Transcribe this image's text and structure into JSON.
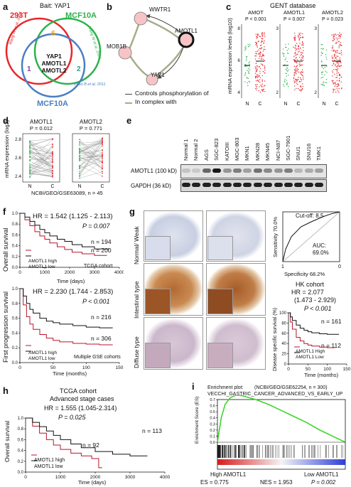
{
  "panels": {
    "a": {
      "letter": "a",
      "bait": "Bait: YAP1",
      "labels": {
        "hek": "293T",
        "mcf10a_top": "MCF10A",
        "mcf10a_bottom": "MCF10A"
      },
      "refs": {
        "wang_left": "Wang W et al, 2014",
        "wang_right": "Wang W et al, 2014",
        "zhao": "Zhao B et al, 2011"
      },
      "counts": {
        "top": "6",
        "left": "1",
        "right": "2"
      },
      "center": [
        "YAP1",
        "AMOTL1",
        "AMOTL2"
      ],
      "colors": {
        "hek": "#e8262b",
        "mcf10a_top": "#2bb24c",
        "mcf10a_bottom": "#4a7fc1",
        "count_top": "#e8a61a",
        "count_left": "#7c3d9c",
        "count_right": "#2a9c8b"
      }
    },
    "b": {
      "letter": "b",
      "nodes": [
        "WWTR1",
        "MOB1B",
        "AMOTL1",
        "YAP1"
      ],
      "legend": [
        "Controls phosphorylation of",
        "In complex with"
      ],
      "colors": {
        "node_fill": "#f7c4c6",
        "phos_edge": "#444444",
        "complex_edge": "#a4ad8a"
      }
    },
    "c": {
      "letter": "c",
      "title": "GENT database",
      "ylabel": "mRNA expression levels (log10)",
      "plots": [
        {
          "gene": "AMOT",
          "p": "P < 0.001",
          "ticks": [
            "4",
            "6",
            "8"
          ],
          "groups": [
            "N",
            "C"
          ]
        },
        {
          "gene": "AMOTL1",
          "p": "P = 0.007",
          "ticks": [
            "2",
            "3"
          ],
          "groups": [
            "N",
            "C"
          ]
        },
        {
          "gene": "AMOTL2",
          "p": "P = 0.023",
          "ticks": [
            "2",
            "3"
          ],
          "groups": [
            "N",
            "C"
          ]
        }
      ],
      "colors": {
        "normal": "#2bb24c",
        "cancer": "#e8262b"
      }
    },
    "d": {
      "letter": "d",
      "ylabel": "mRNA expression (log2)",
      "ticks": [
        "2.4",
        "2.6",
        "2.8"
      ],
      "plots": [
        {
          "gene": "AMOTL1",
          "p": "P = 0.012",
          "groups": [
            "N",
            "C"
          ]
        },
        {
          "gene": "AMOTL2",
          "p": "P = 0.771",
          "groups": [
            "N",
            "C"
          ]
        }
      ],
      "source": "NCBI/GEO/GSE63089, n = 45"
    },
    "e": {
      "letter": "e",
      "lanes": [
        "Normal 1",
        "Normal 2",
        "AGS",
        "SGC-823",
        "KATOIII",
        "MGC-803",
        "MKN1",
        "MKN28",
        "MKN45",
        "NCI-N87",
        "SGC-7901",
        "SNU1",
        "SNU16",
        "TMK1"
      ],
      "rows": [
        "AMOTL1 (100 kD)",
        "GAPDH (36 kD)"
      ]
    },
    "f": {
      "letter": "f",
      "top": {
        "ylabel": "Overall survival",
        "hr": "HR = 1.542 (1.125 - 2.113)",
        "p": "P = 0.007",
        "n_high": "n = 194",
        "n_low": "n = 200",
        "cohort": "TCGA cohort",
        "xlabel": "Time (days)",
        "xticks": [
          "0",
          "1000",
          "2000",
          "3000",
          "4000"
        ],
        "yticks": [
          "0.0",
          "0.2",
          "0.4",
          "0.6",
          "0.8",
          "1.0"
        ],
        "legend": [
          "AMOTL1 high",
          "AMOTL1 low"
        ]
      },
      "bottom": {
        "ylabel": "First progression survival",
        "hr": "HR = 2.230 (1.744 - 2.853)",
        "p": "P < 0.001",
        "n_high": "n = 216",
        "n_low": "n = 306",
        "cohort": "Multiple GSE cohorts",
        "xlabel": "Time (months)",
        "xticks": [
          "0",
          "50",
          "100",
          "150"
        ],
        "yticks": [
          "0.0",
          "0.2",
          "0.4",
          "0.6",
          "0.8",
          "1.0"
        ],
        "legend": [
          "AMOTL1 high",
          "AMOTL1 low"
        ]
      }
    },
    "g": {
      "letter": "g",
      "row_labels": [
        "Normal/ Weak",
        "Intestinal type",
        "Diffuse type"
      ],
      "roc": {
        "cutoff": "Cut-off: 8.5",
        "auc_label": "AUC:",
        "auc": "69.0%",
        "sens": "Sensitivity 70.0%",
        "spec": "Specificity 68.2%",
        "x0": "1",
        "x1": "0"
      },
      "km": {
        "cohort": "HK cohort",
        "hr": "HR = 2.077",
        "ci": "(1.473 - 2.929)",
        "p": "P < 0.001",
        "n_high": "n = 161",
        "n_low": "n = 112",
        "ylabel": "Disease specific survival (%)",
        "xlabel": "Time (months)",
        "xticks": [
          "0",
          "50",
          "100",
          "150"
        ],
        "yticks": [
          "0",
          "20",
          "40",
          "60",
          "80",
          "100"
        ],
        "legend": [
          "AMOTL1 High",
          "AMOTL1 Low"
        ]
      }
    },
    "h": {
      "letter": "h",
      "title1": "TCGA cohort",
      "title2": "Advanced stage cases",
      "hr": "HR = 1.555 (1.045-2.314)",
      "p": "P = 0.025",
      "n_high": "n = 113",
      "n_low": "n = 92",
      "ylabel": "Overall survival",
      "xlabel": "Time (days)",
      "xticks": [
        "0",
        "1000",
        "2000",
        "3000",
        "4000"
      ],
      "yticks": [
        "0.0",
        "0.2",
        "0.4",
        "0.6",
        "0.8",
        "1.0"
      ],
      "legend": [
        "AMOTL1 high",
        "AMOTL1 low"
      ]
    },
    "i": {
      "letter": "i",
      "plot_title": "Enrichment plot:",
      "source": "(NCBI/GEO/GSE62254, n = 300)",
      "geneset": "VECCHI_GASTRIC_CANCER_ADVANCED_VS_EARLY_UP",
      "ylabel": "Enrichment Score (ES)",
      "yticks": [
        "0.0",
        "0.1",
        "0.2",
        "0.3",
        "0.4",
        "0.5",
        "0.6",
        "0.7"
      ],
      "left_label": "High AMOTL1",
      "right_label": "Low AMOTL1",
      "es": "ES = 0.775",
      "nes": "NES = 1.953",
      "p": "P = 0.002",
      "colors": {
        "curve": "#3dd62b"
      }
    }
  },
  "chart_data": [
    {
      "type": "line",
      "panel": "f-top",
      "ylabel": "Overall survival",
      "xlabel": "Time (days)",
      "xlim": [
        0,
        4000
      ],
      "ylim": [
        0,
        1
      ],
      "series": [
        {
          "name": "AMOTL1 high",
          "x": [
            0,
            200,
            400,
            600,
            800,
            1000,
            1200,
            1500,
            1800,
            2100,
            2500,
            3000,
            3500
          ],
          "y": [
            1.0,
            0.88,
            0.77,
            0.66,
            0.58,
            0.52,
            0.45,
            0.38,
            0.33,
            0.28,
            0.25,
            0.22,
            0.22
          ]
        },
        {
          "name": "AMOTL1 low",
          "x": [
            0,
            200,
            400,
            600,
            800,
            1000,
            1200,
            1500,
            1800,
            2100,
            2500,
            3000,
            3600
          ],
          "y": [
            1.0,
            0.93,
            0.85,
            0.78,
            0.7,
            0.64,
            0.58,
            0.52,
            0.48,
            0.42,
            0.38,
            0.34,
            0.34
          ]
        }
      ]
    },
    {
      "type": "line",
      "panel": "f-bottom",
      "ylabel": "First progression survival",
      "xlabel": "Time (months)",
      "xlim": [
        0,
        150
      ],
      "ylim": [
        0,
        1
      ],
      "series": [
        {
          "name": "AMOTL1 high",
          "x": [
            0,
            5,
            10,
            15,
            20,
            30,
            40,
            50,
            60,
            80,
            100,
            120,
            140
          ],
          "y": [
            1.0,
            0.78,
            0.62,
            0.52,
            0.45,
            0.38,
            0.33,
            0.3,
            0.28,
            0.26,
            0.25,
            0.24,
            0.24
          ]
        },
        {
          "name": "AMOTL1 low",
          "x": [
            0,
            5,
            10,
            15,
            20,
            30,
            40,
            50,
            60,
            80,
            100,
            120,
            140
          ],
          "y": [
            1.0,
            0.9,
            0.8,
            0.72,
            0.67,
            0.6,
            0.56,
            0.54,
            0.52,
            0.5,
            0.48,
            0.47,
            0.47
          ]
        }
      ]
    },
    {
      "type": "line",
      "panel": "g-km",
      "ylabel": "Disease specific survival (%)",
      "xlabel": "Time (months)",
      "xlim": [
        0,
        150
      ],
      "ylim": [
        0,
        100
      ],
      "series": [
        {
          "name": "AMOTL1 High",
          "x": [
            0,
            5,
            10,
            20,
            30,
            40,
            50,
            60,
            80,
            100,
            120
          ],
          "y": [
            100,
            82,
            68,
            52,
            45,
            40,
            37,
            35,
            33,
            32,
            32
          ]
        },
        {
          "name": "AMOTL1 Low",
          "x": [
            0,
            5,
            10,
            20,
            30,
            40,
            50,
            60,
            80,
            100,
            130
          ],
          "y": [
            100,
            92,
            85,
            76,
            70,
            66,
            63,
            61,
            59,
            58,
            58
          ]
        }
      ]
    },
    {
      "type": "line",
      "panel": "h",
      "ylabel": "Overall survival",
      "xlabel": "Time (days)",
      "xlim": [
        0,
        4000
      ],
      "ylim": [
        0,
        1
      ],
      "series": [
        {
          "name": "AMOTL1 high",
          "x": [
            0,
            200,
            400,
            600,
            800,
            1000,
            1300,
            1600,
            1900,
            2100,
            2200
          ],
          "y": [
            1.0,
            0.85,
            0.72,
            0.6,
            0.5,
            0.42,
            0.35,
            0.3,
            0.25,
            0.08,
            0.08
          ]
        },
        {
          "name": "AMOTL1 low",
          "x": [
            0,
            200,
            400,
            600,
            800,
            1000,
            1300,
            1600,
            2000,
            2500,
            3000,
            3500
          ],
          "y": [
            1.0,
            0.92,
            0.84,
            0.76,
            0.68,
            0.6,
            0.52,
            0.45,
            0.38,
            0.33,
            0.3,
            0.3
          ]
        }
      ]
    },
    {
      "type": "line",
      "panel": "g-roc",
      "xlabel": "Specificity 68.2%",
      "ylabel": "Sensitivity 70.0%",
      "series": [
        {
          "name": "ROC",
          "x": [
            1.0,
            0.95,
            0.85,
            0.68,
            0.5,
            0.3,
            0.15,
            0.0
          ],
          "y": [
            0.0,
            0.25,
            0.5,
            0.7,
            0.8,
            0.9,
            0.96,
            1.0
          ]
        }
      ]
    },
    {
      "type": "line",
      "panel": "i",
      "ylabel": "Enrichment Score (ES)",
      "ylim": [
        0,
        0.8
      ],
      "series": [
        {
          "name": "ES",
          "x": [
            0,
            0.03,
            0.06,
            0.1,
            0.15,
            0.2,
            0.3,
            0.4,
            0.5,
            0.6,
            0.7,
            0.8,
            0.9,
            1.0
          ],
          "y": [
            0.0,
            0.4,
            0.62,
            0.73,
            0.775,
            0.76,
            0.7,
            0.62,
            0.52,
            0.42,
            0.32,
            0.2,
            0.1,
            0.0
          ]
        }
      ]
    }
  ]
}
